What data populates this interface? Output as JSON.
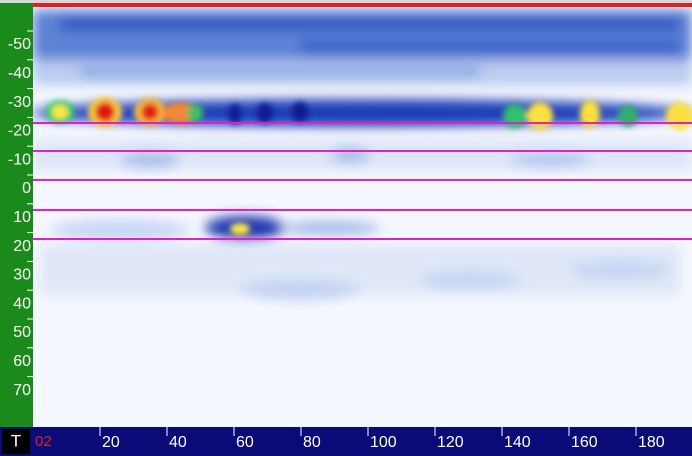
{
  "left_scale": {
    "labels": [
      "-50",
      "-40",
      "-30",
      "-20",
      "-10",
      "0",
      "10",
      "20",
      "30",
      "40",
      "50",
      "60",
      "70"
    ]
  },
  "bottom_scale": {
    "mode": "T",
    "start": "02",
    "labels": [
      "20",
      "40",
      "60",
      "80",
      "100",
      "120",
      "140",
      "160",
      "180"
    ]
  }
}
